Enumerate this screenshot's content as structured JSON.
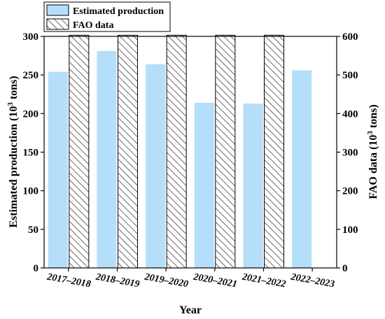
{
  "chart_data": {
    "type": "bar",
    "categories": [
      "2017–2018",
      "2018–2019",
      "2019–2020",
      "2020–2021",
      "2021–2022",
      "2022–2023"
    ],
    "series": [
      {
        "name": "Estimated production",
        "axis": "left",
        "values": [
          254,
          281,
          264,
          214,
          213,
          256
        ],
        "color": "#b4defa",
        "pattern": "solid"
      },
      {
        "name": "FAO data",
        "axis": "right",
        "values": [
          603,
          603,
          603,
          603,
          603,
          null
        ],
        "color": "#ffffff",
        "pattern": "diagonal-hatch"
      }
    ],
    "xlabel": "Year",
    "ylabel_left_prefix": "Estimated production (10",
    "ylabel_left_sup": "3",
    "ylabel_left_suffix": " tons)",
    "ylabel_right_prefix": "FAO data (10",
    "ylabel_right_sup": "3",
    "ylabel_right_suffix": " tons)",
    "ylim_left": [
      0,
      300
    ],
    "yticks_left": [
      0,
      50,
      100,
      150,
      200,
      250,
      300
    ],
    "ylim_right": [
      0,
      600
    ],
    "yticks_right": [
      0,
      100,
      200,
      300,
      400,
      500,
      600
    ],
    "legend_position": "top-left",
    "grid": false
  }
}
